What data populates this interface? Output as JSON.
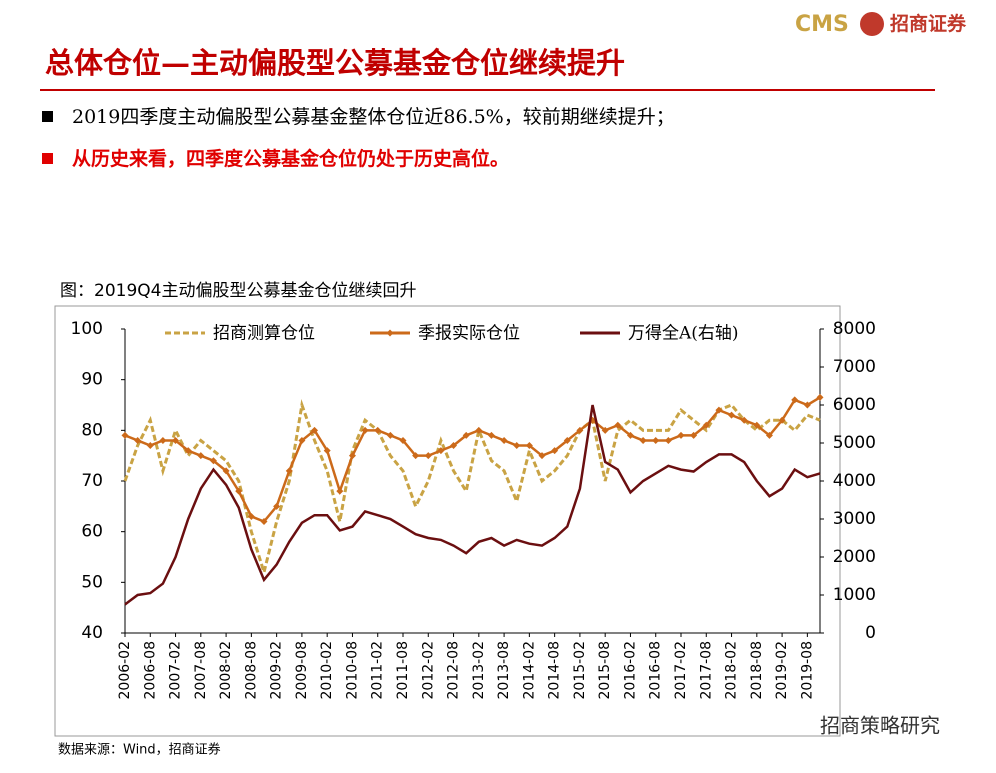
{
  "header": {
    "logo_text": "CMS",
    "logo_name": "招商证券",
    "title": "总体仓位—主动偏股型公募基金仓位继续提升"
  },
  "bullets": [
    "2019四季度主动偏股型公募基金整体仓位近86.5%，较前期继续提升；",
    "从历史来看，四季度公募基金仓位仍处于历史高位。"
  ],
  "chart_data": {
    "type": "line",
    "title": "图：2019Q4主动偏股型公募基金仓位继续回升",
    "categories": [
      "2006-02",
      null,
      "2006-08",
      null,
      "2007-02",
      null,
      "2007-08",
      null,
      "2008-02",
      null,
      "2008-08",
      null,
      "2009-02",
      null,
      "2009-08",
      null,
      "2010-02",
      null,
      "2010-08",
      null,
      "2011-02",
      null,
      "2011-08",
      null,
      "2012-02",
      null,
      "2012-08",
      null,
      "2013-02",
      null,
      "2013-08",
      null,
      "2014-02",
      null,
      "2014-08",
      null,
      "2015-02",
      null,
      "2015-08",
      null,
      "2016-02",
      null,
      "2016-08",
      null,
      "2017-02",
      null,
      "2017-08",
      null,
      "2018-02",
      null,
      "2018-08",
      null,
      "2019-02",
      null,
      "2019-08",
      null
    ],
    "series": [
      {
        "name": "招商测算仓位",
        "color": "#c9a344",
        "style": "dashed",
        "values": [
          70,
          77,
          82,
          72,
          80,
          75,
          78,
          76,
          74,
          70,
          60,
          52,
          62,
          70,
          85,
          78,
          72,
          62,
          76,
          82,
          80,
          75,
          72,
          65,
          70,
          78,
          72,
          68,
          80,
          74,
          72,
          66,
          76,
          70,
          72,
          75,
          80,
          82,
          70,
          80,
          82,
          80,
          80,
          80,
          84,
          82,
          80,
          84,
          85,
          82,
          80,
          82,
          82,
          80,
          83,
          82
        ]
      },
      {
        "name": "季报实际仓位",
        "color": "#cc6a1a",
        "style": "markers",
        "values": [
          79,
          78,
          77,
          78,
          78,
          76,
          75,
          74,
          72,
          68,
          63,
          62,
          65,
          72,
          78,
          80,
          76,
          68,
          75,
          80,
          80,
          79,
          78,
          75,
          75,
          76,
          77,
          79,
          80,
          79,
          78,
          77,
          77,
          75,
          76,
          78,
          80,
          82,
          80,
          81,
          79,
          78,
          78,
          78,
          79,
          79,
          81,
          84,
          83,
          82,
          81,
          79,
          82,
          86,
          85,
          86.5
        ]
      },
      {
        "name": "万得全A(右轴)",
        "color": "#6b0f10",
        "style": "solid",
        "axis": "y2",
        "values": [
          750,
          1000,
          1050,
          1300,
          2000,
          3000,
          3800,
          4300,
          3900,
          3300,
          2200,
          1400,
          1800,
          2400,
          2900,
          3100,
          3100,
          2700,
          2800,
          3200,
          3100,
          3000,
          2800,
          2600,
          2500,
          2450,
          2300,
          2100,
          2400,
          2500,
          2300,
          2450,
          2350,
          2300,
          2500,
          2800,
          3800,
          6000,
          4500,
          4300,
          3700,
          4000,
          4200,
          4400,
          4300,
          4250,
          4500,
          4700,
          4700,
          4500,
          4000,
          3600,
          3800,
          4300,
          4100,
          4200
        ]
      }
    ],
    "ylim": [
      40,
      100
    ],
    "yticks": [
      40,
      50,
      60,
      70,
      80,
      90,
      100
    ],
    "y2lim": [
      0,
      8000
    ],
    "y2ticks": [
      0,
      1000,
      2000,
      3000,
      4000,
      5000,
      6000,
      7000,
      8000
    ],
    "legend": "top",
    "source": "数据来源：Wind，招商证券"
  },
  "watermark": "招商策略研究"
}
